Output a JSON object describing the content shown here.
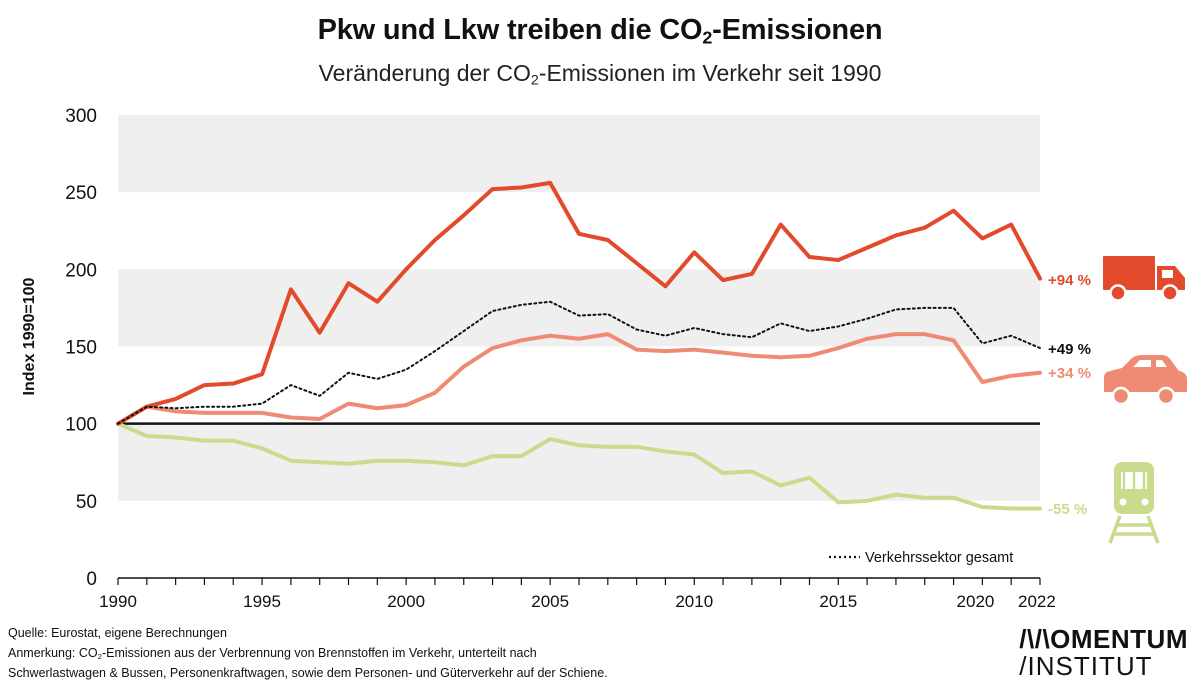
{
  "title": {
    "prefix": "Pkw und Lkw treiben die CO",
    "sub": "2",
    "suffix": "-Emissionen"
  },
  "subtitle": {
    "prefix": "Veränderung der CO",
    "sub": "2",
    "suffix": "-Emissionen im Verkehr seit 1990"
  },
  "chart_data": {
    "type": "line",
    "ylabel": "Index 1990=100",
    "xlabel": "",
    "ylim": [
      0,
      300
    ],
    "xlim": [
      1990,
      2022
    ],
    "yticks": [
      0,
      50,
      100,
      150,
      200,
      250,
      300
    ],
    "xticks": [
      1990,
      1995,
      2000,
      2005,
      2010,
      2015,
      2020,
      2022
    ],
    "grid": "alternating horizontal bands",
    "baseline": 100,
    "x": [
      1990,
      1991,
      1992,
      1993,
      1994,
      1995,
      1996,
      1997,
      1998,
      1999,
      2000,
      2001,
      2002,
      2003,
      2004,
      2005,
      2006,
      2007,
      2008,
      2009,
      2010,
      2011,
      2012,
      2013,
      2014,
      2015,
      2016,
      2017,
      2018,
      2019,
      2020,
      2021,
      2022
    ],
    "series": [
      {
        "key": "lkw",
        "color": "#e24a2b",
        "style": "solid",
        "end_label": "+94 %",
        "values": [
          100,
          111,
          116,
          125,
          126,
          132,
          187,
          159,
          191,
          179,
          200,
          219,
          235,
          252,
          253,
          256,
          223,
          219,
          204,
          189,
          211,
          193,
          197,
          229,
          208,
          206,
          214,
          222,
          227,
          238,
          220,
          229,
          194
        ]
      },
      {
        "key": "gesamt",
        "name": "Verkehrssektor gesamt",
        "color": "#111111",
        "style": "dotted",
        "end_label": "+49 %",
        "values": [
          100,
          111,
          110,
          111,
          111,
          113,
          125,
          118,
          133,
          129,
          135,
          147,
          160,
          173,
          177,
          179,
          170,
          171,
          161,
          157,
          162,
          158,
          156,
          165,
          160,
          163,
          168,
          174,
          175,
          175,
          152,
          157,
          149
        ]
      },
      {
        "key": "pkw",
        "color": "#ef8b74",
        "style": "solid",
        "end_label": "+34 %",
        "values": [
          100,
          111,
          108,
          107,
          107,
          107,
          104,
          103,
          113,
          110,
          112,
          120,
          137,
          149,
          154,
          157,
          155,
          158,
          148,
          147,
          148,
          146,
          144,
          143,
          144,
          149,
          155,
          158,
          158,
          154,
          127,
          131,
          133
        ]
      },
      {
        "key": "schiene",
        "color": "#c9dc8e",
        "style": "solid",
        "end_label": "-55 %",
        "values": [
          100,
          92,
          91,
          89,
          89,
          84,
          76,
          75,
          74,
          76,
          76,
          75,
          73,
          79,
          79,
          90,
          86,
          85,
          85,
          82,
          80,
          68,
          69,
          60,
          65,
          49,
          50,
          54,
          52,
          52,
          46,
          45,
          45
        ]
      }
    ],
    "legend": {
      "position": "bottom-right",
      "entries": [
        "Verkehrssektor gesamt"
      ]
    }
  },
  "icons": [
    "truck-icon",
    "car-icon",
    "train-icon"
  ],
  "footer": {
    "source": "Quelle: Eurostat, eigene Berechnungen",
    "note_prefix": "Anmerkung: CO",
    "note_sub": "2",
    "note_suffix": "-Emissionen aus der Verbrennung von Brennstoffen im Verkehr,  unterteilt nach",
    "note_line2": "Schwerlastwagen & Bussen, Personenkraftwagen, sowie dem Personen- und Güterverkehr auf der Schiene."
  },
  "logo": {
    "line1": "/\\/\\OMENTUM",
    "line2": "/INSTITUT"
  }
}
